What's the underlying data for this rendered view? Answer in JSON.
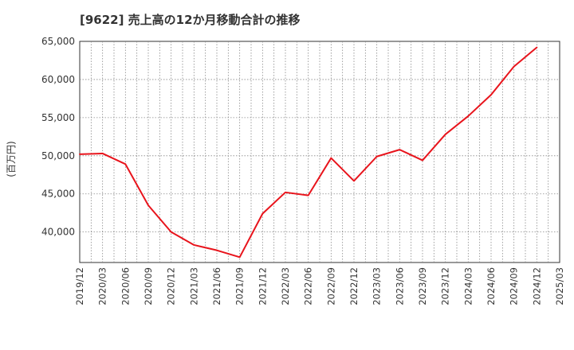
{
  "chart_data": {
    "type": "line",
    "title": "[9622]  売上高の12か月移動合計の推移",
    "ylabel": "(百万円)",
    "xlabel": "",
    "ylim": [
      36000,
      65000
    ],
    "yticks": [
      40000,
      45000,
      50000,
      55000,
      60000,
      65000
    ],
    "ytick_labels": [
      "40,000",
      "45,000",
      "50,000",
      "55,000",
      "60,000",
      "65,000"
    ],
    "x": [
      "2019/12",
      "2020/03",
      "2020/06",
      "2020/09",
      "2020/12",
      "2021/03",
      "2021/06",
      "2021/09",
      "2021/12",
      "2022/03",
      "2022/06",
      "2022/09",
      "2022/12",
      "2023/03",
      "2023/06",
      "2023/09",
      "2023/12",
      "2024/03",
      "2024/06",
      "2024/09",
      "2024/12",
      "2025/03"
    ],
    "series": [
      {
        "name": "売上高",
        "color": "#e8141c",
        "values": [
          50200,
          50300,
          48900,
          43500,
          40000,
          38300,
          37600,
          36700,
          42400,
          45200,
          44800,
          49700,
          46700,
          49900,
          50800,
          49400,
          52800,
          55200,
          58000,
          61700,
          64200,
          null
        ]
      }
    ],
    "grid": true,
    "legend": "none"
  }
}
